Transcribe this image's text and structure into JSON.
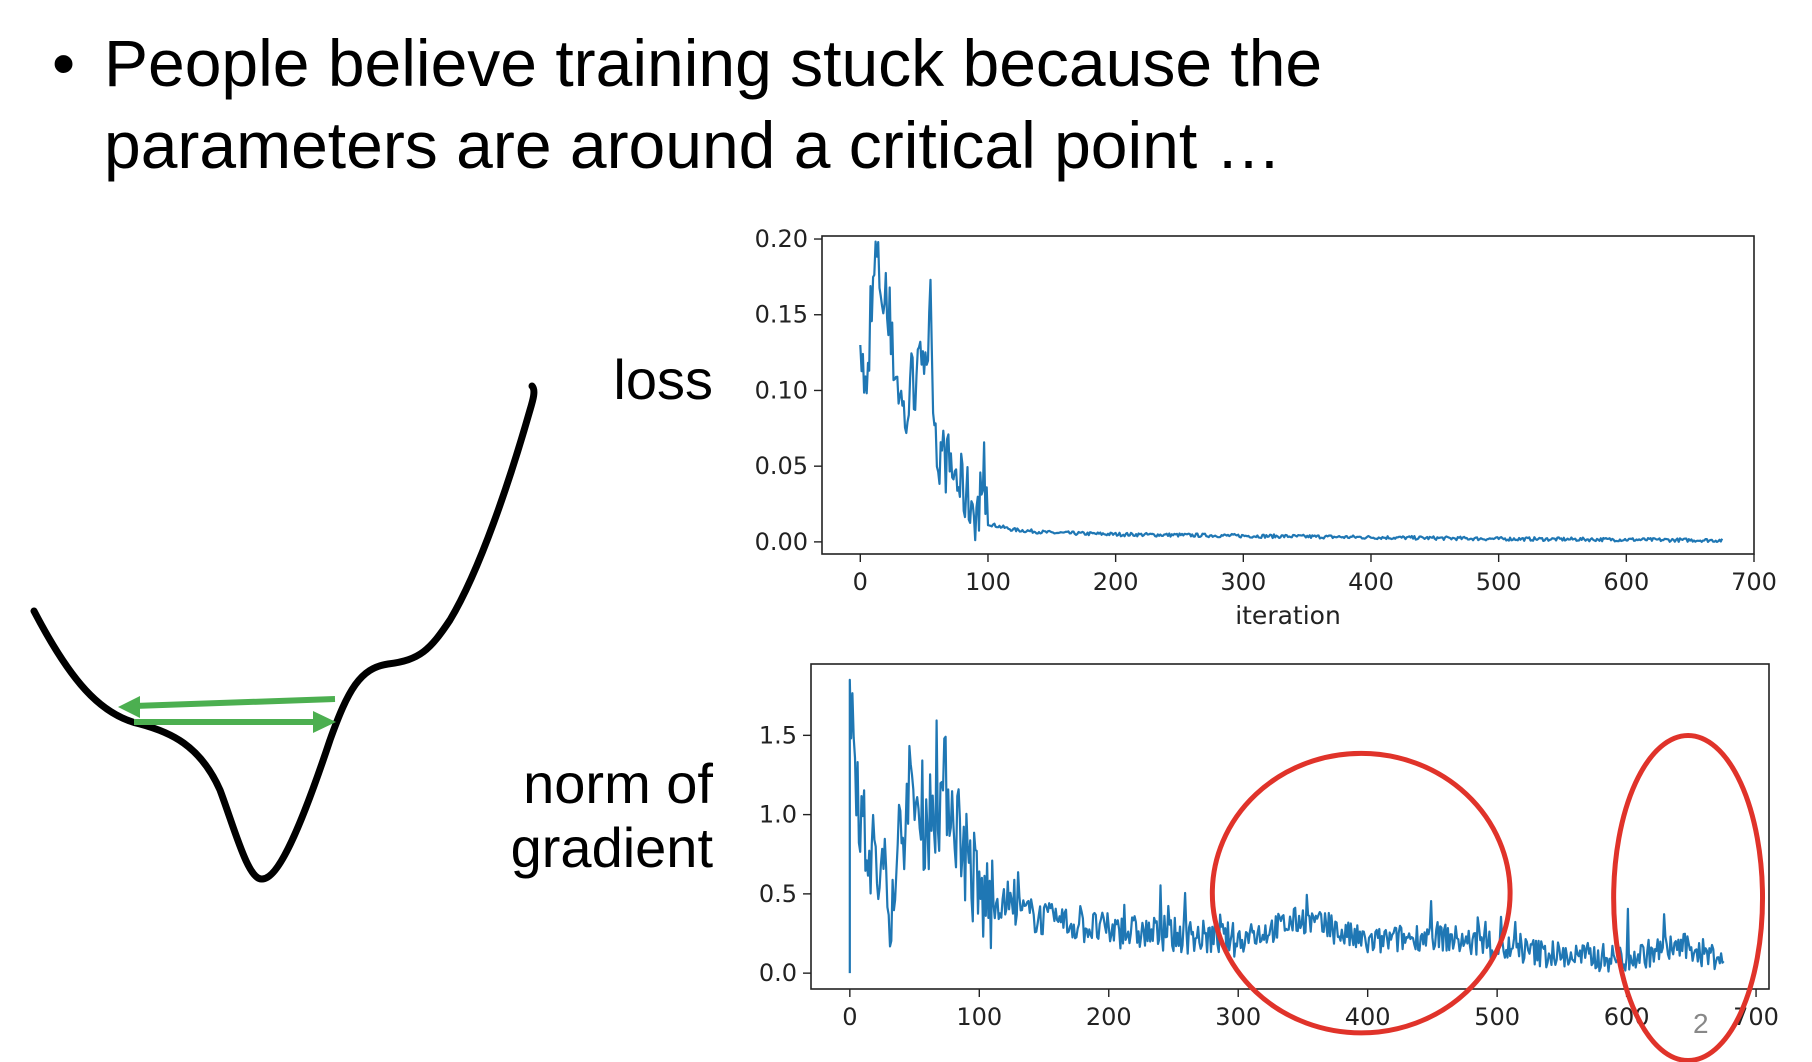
{
  "slide": {
    "bullet": "•",
    "text": "People believe training stuck because the parameters are around a critical point …",
    "loss_label": "loss",
    "grad_label_line1": "norm of",
    "grad_label_line2": "gradient",
    "page_number": "2"
  },
  "colors": {
    "series": "#1f77b4",
    "highlight": "#e0332a",
    "arrow": "#4caf50",
    "curve": "#000000"
  },
  "chart_data": [
    {
      "type": "line",
      "xlabel": "iteration",
      "ylabel": "",
      "xlim": [
        -30,
        700
      ],
      "ylim": [
        -0.008,
        0.202
      ],
      "xticks": [
        "0",
        "100",
        "200",
        "300",
        "400",
        "500",
        "600",
        "700"
      ],
      "yticks": [
        "0.00",
        "0.05",
        "0.10",
        "0.15",
        "0.20"
      ],
      "xtick_values": [
        0,
        100,
        200,
        300,
        400,
        500,
        600,
        700
      ],
      "ytick_values": [
        0,
        0.05,
        0.1,
        0.15,
        0.2
      ],
      "grid": false,
      "x_range": [
        0,
        675
      ],
      "key_points": [
        [
          0,
          0.13
        ],
        [
          5,
          0.09
        ],
        [
          12,
          0.19
        ],
        [
          22,
          0.14
        ],
        [
          35,
          0.08
        ],
        [
          55,
          0.137
        ],
        [
          60,
          0.06
        ],
        [
          70,
          0.05
        ],
        [
          80,
          0.035
        ],
        [
          90,
          0.022
        ],
        [
          100,
          0.012
        ],
        [
          120,
          0.008
        ],
        [
          150,
          0.006
        ],
        [
          200,
          0.005
        ],
        [
          300,
          0.004
        ],
        [
          400,
          0.003
        ],
        [
          500,
          0.002
        ],
        [
          600,
          0.0015
        ],
        [
          675,
          0.001
        ]
      ]
    },
    {
      "type": "line",
      "xlabel": "",
      "ylabel": "",
      "xlim": [
        -30,
        710
      ],
      "ylim": [
        -0.1,
        1.95
      ],
      "xticks": [
        "0",
        "100",
        "200",
        "300",
        "400",
        "500",
        "600",
        "700"
      ],
      "yticks": [
        "0.0",
        "0.5",
        "1.0",
        "1.5"
      ],
      "xtick_values": [
        0,
        100,
        200,
        300,
        400,
        500,
        600,
        700
      ],
      "ytick_values": [
        0,
        0.5,
        1.0,
        1.5
      ],
      "grid": false,
      "x_range": [
        0,
        675
      ],
      "key_points": [
        [
          0,
          1.85
        ],
        [
          10,
          0.9
        ],
        [
          30,
          0.5
        ],
        [
          45,
          1.15
        ],
        [
          60,
          1.0
        ],
        [
          75,
          1.22
        ],
        [
          100,
          0.5
        ],
        [
          150,
          0.35
        ],
        [
          200,
          0.28
        ],
        [
          300,
          0.22
        ],
        [
          350,
          0.35
        ],
        [
          400,
          0.2
        ],
        [
          450,
          0.25
        ],
        [
          500,
          0.17
        ],
        [
          550,
          0.12
        ],
        [
          600,
          0.1
        ],
        [
          640,
          0.18
        ],
        [
          675,
          0.1
        ]
      ],
      "highlighted_regions": [
        [
          280,
          510
        ],
        [
          590,
          705
        ]
      ]
    }
  ]
}
